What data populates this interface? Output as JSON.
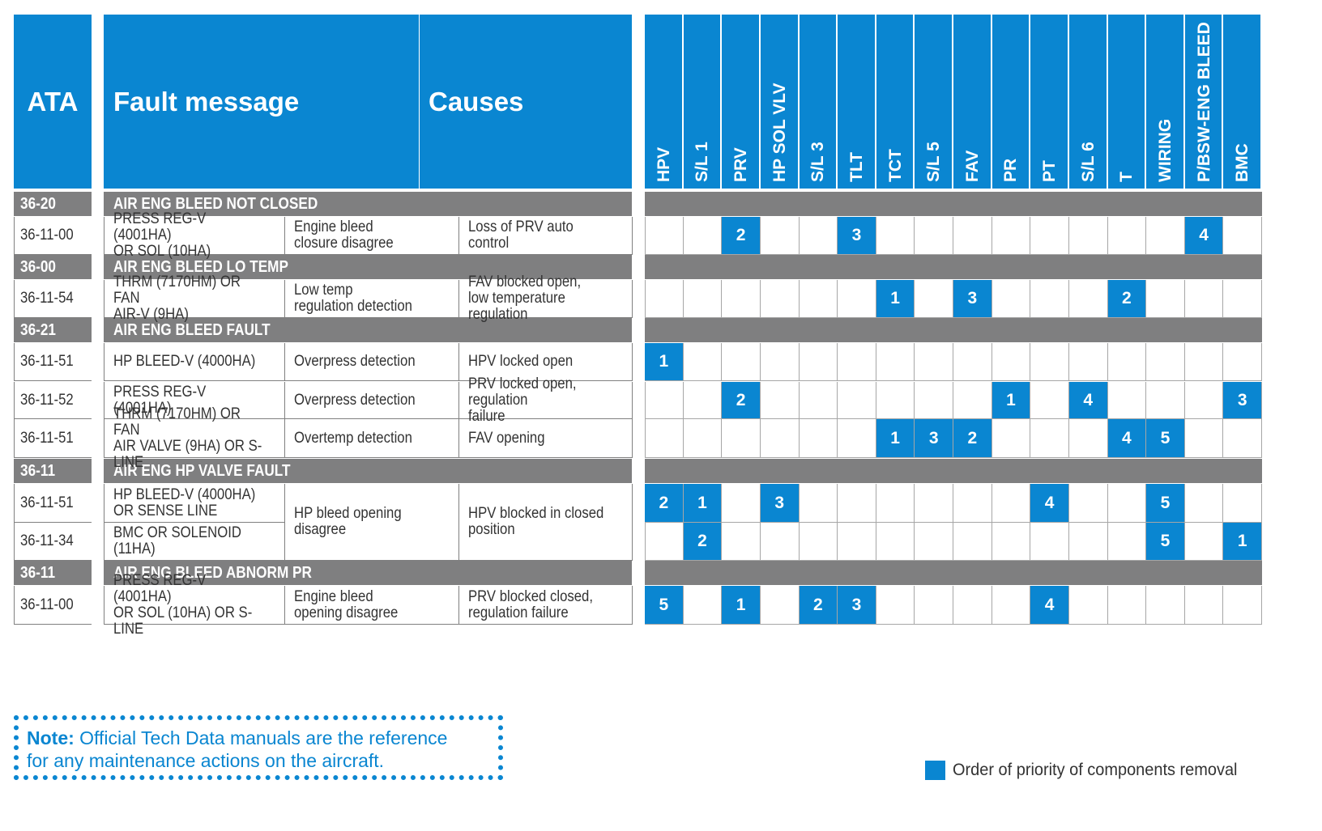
{
  "header": {
    "ata": "ATA",
    "fault_message": "Fault message",
    "causes": "Causes"
  },
  "components": [
    "HPV",
    "S/L 1",
    "PRV",
    "HP SOL VLV",
    "S/L 3",
    "TLT",
    "TCT",
    "S/L 5",
    "FAV",
    "PR",
    "PT",
    "S/L 6",
    "T",
    "WIRING",
    "P/BSW-ENG BLEED",
    "BMC"
  ],
  "sections": [
    {
      "ata": "36-20",
      "title": "AIR ENG BLEED NOT CLOSED"
    },
    {
      "ata": "36-00",
      "title": "AIR ENG BLEED LO TEMP"
    },
    {
      "ata": "36-21",
      "title": "AIR ENG BLEED FAULT"
    },
    {
      "ata": "36-11",
      "title": "AIR ENG HP VALVE FAULT"
    },
    {
      "ata": "36-11",
      "title": "AIR ENG BLEED ABNORM PR"
    }
  ],
  "rows": [
    {
      "ata": "36-11-00",
      "component": "PRESS REG-V (4001HA)\nOR SOL (10HA)",
      "fault": "Engine bleed\nclosure disagree",
      "cause": "Loss of PRV auto control"
    },
    {
      "ata": "36-11-54",
      "component": "THRM (7170HM) OR FAN\nAIR-V (9HA)",
      "fault": "Low temp\nregulation detection",
      "cause": "FAV blocked open,\nlow temperature regulation"
    },
    {
      "ata": "36-11-51",
      "component": "HP BLEED-V (4000HA)",
      "fault": "Overpress detection",
      "cause": "HPV locked open"
    },
    {
      "ata": "36-11-52",
      "component": "PRESS REG-V (4001HA)",
      "fault": "Overpress detection",
      "cause": "PRV locked open, regulation\nfailure"
    },
    {
      "ata": "36-11-51",
      "component": "THRM (7170HM) OR FAN\nAIR VALVE (9HA) OR S-LINE",
      "fault": "Overtemp detection",
      "cause": "FAV opening"
    },
    {
      "ata": "36-11-51",
      "component": "HP BLEED-V (4000HA)\nOR SENSE LINE",
      "fault": "HP bleed opening disagree",
      "cause": "HPV blocked in closed\nposition"
    },
    {
      "ata": "36-11-34",
      "component": "BMC OR SOLENOID (11HA)"
    },
    {
      "ata": "36-11-00",
      "component": "PRESS REG-V (4001HA)\nOR SOL (10HA) OR S-LINE",
      "fault": "Engine bleed\nopening disagree",
      "cause": "PRV blocked closed,\nregulation failure"
    }
  ],
  "priorities": [
    {
      "row": 0,
      "col": 2,
      "value": "2"
    },
    {
      "row": 0,
      "col": 5,
      "value": "3"
    },
    {
      "row": 0,
      "col": 14,
      "value": "4"
    },
    {
      "row": 1,
      "col": 6,
      "value": "1"
    },
    {
      "row": 1,
      "col": 8,
      "value": "3"
    },
    {
      "row": 1,
      "col": 12,
      "value": "2"
    },
    {
      "row": 2,
      "col": 0,
      "value": "1"
    },
    {
      "row": 3,
      "col": 2,
      "value": "2"
    },
    {
      "row": 3,
      "col": 9,
      "value": "1"
    },
    {
      "row": 3,
      "col": 11,
      "value": "4"
    },
    {
      "row": 3,
      "col": 15,
      "value": "3"
    },
    {
      "row": 4,
      "col": 6,
      "value": "1"
    },
    {
      "row": 4,
      "col": 7,
      "value": "3"
    },
    {
      "row": 4,
      "col": 8,
      "value": "2"
    },
    {
      "row": 4,
      "col": 12,
      "value": "4"
    },
    {
      "row": 4,
      "col": 13,
      "value": "5"
    },
    {
      "row": 5,
      "col": 0,
      "value": "2"
    },
    {
      "row": 5,
      "col": 1,
      "value": "1"
    },
    {
      "row": 5,
      "col": 3,
      "value": "3"
    },
    {
      "row": 5,
      "col": 10,
      "value": "4"
    },
    {
      "row": 5,
      "col": 13,
      "value": "5"
    },
    {
      "row": 6,
      "col": 1,
      "value": "2"
    },
    {
      "row": 6,
      "col": 13,
      "value": "5"
    },
    {
      "row": 6,
      "col": 15,
      "value": "1"
    },
    {
      "row": 7,
      "col": 0,
      "value": "5"
    },
    {
      "row": 7,
      "col": 2,
      "value": "1"
    },
    {
      "row": 7,
      "col": 4,
      "value": "2"
    },
    {
      "row": 7,
      "col": 5,
      "value": "3"
    },
    {
      "row": 7,
      "col": 10,
      "value": "4"
    }
  ],
  "note": {
    "label": "Note:",
    "text_line1": " Official Tech Data manuals are the reference",
    "text_line2": "for any maintenance actions on the aircraft."
  },
  "legend": {
    "text": "Order of priority of components removal"
  },
  "colors": {
    "accent": "#0a86d1",
    "section_bar": "#7f7f80"
  }
}
